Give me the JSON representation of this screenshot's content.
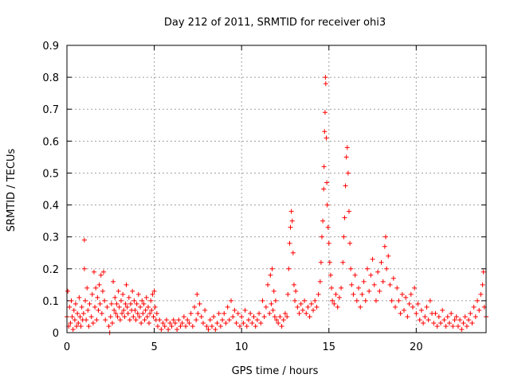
{
  "chart_data": {
    "type": "scatter",
    "title": "Day 212 of 2011, SRMTID for receiver ohi3",
    "xlabel": "GPS time / hours",
    "ylabel": "SRMTID / TECUs",
    "xlim": [
      0,
      24
    ],
    "ylim": [
      0,
      0.9
    ],
    "xticks": [
      0,
      5,
      10,
      15,
      20
    ],
    "yticks": [
      0,
      0.1,
      0.2,
      0.3,
      0.4,
      0.5,
      0.6,
      0.7,
      0.8,
      0.9
    ],
    "grid": true,
    "marker": "+",
    "color": "#ff0000",
    "series": [
      {
        "name": "SRMTID",
        "points": [
          [
            0.0,
            0.05
          ],
          [
            0.05,
            0.13
          ],
          [
            0.1,
            0.02
          ],
          [
            0.15,
            0.08
          ],
          [
            0.2,
            0.03
          ],
          [
            0.25,
            0.1
          ],
          [
            0.3,
            0.05
          ],
          [
            0.35,
            0.01
          ],
          [
            0.4,
            0.07
          ],
          [
            0.45,
            0.04
          ],
          [
            0.5,
            0.09
          ],
          [
            0.55,
            0.02
          ],
          [
            0.6,
            0.06
          ],
          [
            0.65,
            0.03
          ],
          [
            0.7,
            0.11
          ],
          [
            0.75,
            0.05
          ],
          [
            0.8,
            0.02
          ],
          [
            0.85,
            0.08
          ],
          [
            0.9,
            0.04
          ],
          [
            0.95,
            0.06
          ],
          [
            1.0,
            0.29
          ],
          [
            1.0,
            0.2
          ],
          [
            1.05,
            0.1
          ],
          [
            1.1,
            0.04
          ],
          [
            1.15,
            0.14
          ],
          [
            1.2,
            0.07
          ],
          [
            1.25,
            0.02
          ],
          [
            1.3,
            0.09
          ],
          [
            1.4,
            0.05
          ],
          [
            1.45,
            0.12
          ],
          [
            1.5,
            0.03
          ],
          [
            1.55,
            0.19
          ],
          [
            1.6,
            0.08
          ],
          [
            1.65,
            0.14
          ],
          [
            1.7,
            0.04
          ],
          [
            1.75,
            0.11
          ],
          [
            1.8,
            0.07
          ],
          [
            1.85,
            0.15
          ],
          [
            1.9,
            0.09
          ],
          [
            1.95,
            0.18
          ],
          [
            2.0,
            0.06
          ],
          [
            2.05,
            0.13
          ],
          [
            2.1,
            0.19
          ],
          [
            2.15,
            0.1
          ],
          [
            2.2,
            0.04
          ],
          [
            2.3,
            0.08
          ],
          [
            2.4,
            0.02
          ],
          [
            2.45,
            0.0
          ],
          [
            2.5,
            0.05
          ],
          [
            2.55,
            0.09
          ],
          [
            2.6,
            0.03
          ],
          [
            2.65,
            0.16
          ],
          [
            2.7,
            0.07
          ],
          [
            2.75,
            0.11
          ],
          [
            2.8,
            0.06
          ],
          [
            2.85,
            0.09
          ],
          [
            2.9,
            0.05
          ],
          [
            2.95,
            0.13
          ],
          [
            3.0,
            0.08
          ],
          [
            3.05,
            0.04
          ],
          [
            3.1,
            0.1
          ],
          [
            3.15,
            0.06
          ],
          [
            3.2,
            0.12
          ],
          [
            3.25,
            0.07
          ],
          [
            3.3,
            0.05
          ],
          [
            3.35,
            0.09
          ],
          [
            3.4,
            0.15
          ],
          [
            3.45,
            0.08
          ],
          [
            3.5,
            0.06
          ],
          [
            3.55,
            0.11
          ],
          [
            3.6,
            0.04
          ],
          [
            3.65,
            0.09
          ],
          [
            3.7,
            0.07
          ],
          [
            3.75,
            0.13
          ],
          [
            3.8,
            0.05
          ],
          [
            3.85,
            0.1
          ],
          [
            3.9,
            0.07
          ],
          [
            3.95,
            0.04
          ],
          [
            4.0,
            0.09
          ],
          [
            4.05,
            0.06
          ],
          [
            4.1,
            0.12
          ],
          [
            4.15,
            0.05
          ],
          [
            4.2,
            0.08
          ],
          [
            4.25,
            0.03
          ],
          [
            4.3,
            0.1
          ],
          [
            4.35,
            0.06
          ],
          [
            4.4,
            0.09
          ],
          [
            4.45,
            0.04
          ],
          [
            4.5,
            0.07
          ],
          [
            4.55,
            0.11
          ],
          [
            4.6,
            0.05
          ],
          [
            4.65,
            0.08
          ],
          [
            4.7,
            0.03
          ],
          [
            4.75,
            0.06
          ],
          [
            4.8,
            0.1
          ],
          [
            4.85,
            0.07
          ],
          [
            4.9,
            0.12
          ],
          [
            4.95,
            0.05
          ],
          [
            5.0,
            0.13
          ],
          [
            5.05,
            0.08
          ],
          [
            5.1,
            0.04
          ],
          [
            5.15,
            0.06
          ],
          [
            5.2,
            0.02
          ],
          [
            5.3,
            0.04
          ],
          [
            5.4,
            0.01
          ],
          [
            5.5,
            0.03
          ],
          [
            5.6,
            0.02
          ],
          [
            5.7,
            0.04
          ],
          [
            5.8,
            0.01
          ],
          [
            5.9,
            0.03
          ],
          [
            6.0,
            0.02
          ],
          [
            6.1,
            0.04
          ],
          [
            6.2,
            0.03
          ],
          [
            6.3,
            0.01
          ],
          [
            6.4,
            0.04
          ],
          [
            6.5,
            0.02
          ],
          [
            6.6,
            0.03
          ],
          [
            6.7,
            0.05
          ],
          [
            6.8,
            0.02
          ],
          [
            6.9,
            0.04
          ],
          [
            7.0,
            0.03
          ],
          [
            7.1,
            0.06
          ],
          [
            7.2,
            0.02
          ],
          [
            7.3,
            0.08
          ],
          [
            7.4,
            0.04
          ],
          [
            7.45,
            0.12
          ],
          [
            7.5,
            0.06
          ],
          [
            7.6,
            0.09
          ],
          [
            7.7,
            0.05
          ],
          [
            7.8,
            0.03
          ],
          [
            7.9,
            0.07
          ],
          [
            8.0,
            0.02
          ],
          [
            8.1,
            0.01
          ],
          [
            8.2,
            0.04
          ],
          [
            8.3,
            0.02
          ],
          [
            8.4,
            0.05
          ],
          [
            8.5,
            0.01
          ],
          [
            8.6,
            0.03
          ],
          [
            8.7,
            0.06
          ],
          [
            8.8,
            0.02
          ],
          [
            8.9,
            0.04
          ],
          [
            9.0,
            0.06
          ],
          [
            9.1,
            0.03
          ],
          [
            9.2,
            0.08
          ],
          [
            9.3,
            0.04
          ],
          [
            9.4,
            0.1
          ],
          [
            9.5,
            0.05
          ],
          [
            9.6,
            0.07
          ],
          [
            9.7,
            0.03
          ],
          [
            9.8,
            0.06
          ],
          [
            9.9,
            0.02
          ],
          [
            10.0,
            0.05
          ],
          [
            10.1,
            0.03
          ],
          [
            10.2,
            0.07
          ],
          [
            10.3,
            0.02
          ],
          [
            10.4,
            0.04
          ],
          [
            10.5,
            0.06
          ],
          [
            10.6,
            0.03
          ],
          [
            10.7,
            0.05
          ],
          [
            10.8,
            0.02
          ],
          [
            10.9,
            0.04
          ],
          [
            11.0,
            0.06
          ],
          [
            11.1,
            0.03
          ],
          [
            11.2,
            0.1
          ],
          [
            11.3,
            0.05
          ],
          [
            11.4,
            0.08
          ],
          [
            11.5,
            0.15
          ],
          [
            11.6,
            0.06
          ],
          [
            11.65,
            0.18
          ],
          [
            11.7,
            0.09
          ],
          [
            11.75,
            0.2
          ],
          [
            11.8,
            0.07
          ],
          [
            11.85,
            0.13
          ],
          [
            11.9,
            0.05
          ],
          [
            11.95,
            0.1
          ],
          [
            12.0,
            0.04
          ],
          [
            12.1,
            0.03
          ],
          [
            12.2,
            0.05
          ],
          [
            12.3,
            0.02
          ],
          [
            12.4,
            0.04
          ],
          [
            12.5,
            0.06
          ],
          [
            12.6,
            0.05
          ],
          [
            12.65,
            0.12
          ],
          [
            12.7,
            0.2
          ],
          [
            12.75,
            0.28
          ],
          [
            12.8,
            0.33
          ],
          [
            12.85,
            0.38
          ],
          [
            12.9,
            0.35
          ],
          [
            12.95,
            0.25
          ],
          [
            13.0,
            0.15
          ],
          [
            13.05,
            0.1
          ],
          [
            13.1,
            0.13
          ],
          [
            13.2,
            0.08
          ],
          [
            13.3,
            0.06
          ],
          [
            13.4,
            0.09
          ],
          [
            13.5,
            0.07
          ],
          [
            13.6,
            0.1
          ],
          [
            13.7,
            0.06
          ],
          [
            13.8,
            0.08
          ],
          [
            13.9,
            0.05
          ],
          [
            14.0,
            0.09
          ],
          [
            14.1,
            0.07
          ],
          [
            14.2,
            0.1
          ],
          [
            14.3,
            0.08
          ],
          [
            14.4,
            0.12
          ],
          [
            14.5,
            0.16
          ],
          [
            14.55,
            0.22
          ],
          [
            14.6,
            0.3
          ],
          [
            14.65,
            0.35
          ],
          [
            14.7,
            0.45
          ],
          [
            14.72,
            0.52
          ],
          [
            14.75,
            0.63
          ],
          [
            14.78,
            0.69
          ],
          [
            14.8,
            0.8
          ],
          [
            14.82,
            0.78
          ],
          [
            14.85,
            0.61
          ],
          [
            14.88,
            0.47
          ],
          [
            14.9,
            0.4
          ],
          [
            14.95,
            0.33
          ],
          [
            15.0,
            0.28
          ],
          [
            15.05,
            0.22
          ],
          [
            15.1,
            0.18
          ],
          [
            15.15,
            0.14
          ],
          [
            15.2,
            0.1
          ],
          [
            15.3,
            0.09
          ],
          [
            15.4,
            0.12
          ],
          [
            15.5,
            0.08
          ],
          [
            15.6,
            0.11
          ],
          [
            15.7,
            0.14
          ],
          [
            15.8,
            0.22
          ],
          [
            15.85,
            0.3
          ],
          [
            15.9,
            0.36
          ],
          [
            15.95,
            0.46
          ],
          [
            16.0,
            0.55
          ],
          [
            16.05,
            0.58
          ],
          [
            16.1,
            0.5
          ],
          [
            16.15,
            0.38
          ],
          [
            16.2,
            0.28
          ],
          [
            16.25,
            0.2
          ],
          [
            16.3,
            0.15
          ],
          [
            16.4,
            0.12
          ],
          [
            16.5,
            0.18
          ],
          [
            16.6,
            0.1
          ],
          [
            16.7,
            0.14
          ],
          [
            16.8,
            0.08
          ],
          [
            16.9,
            0.12
          ],
          [
            17.0,
            0.16
          ],
          [
            17.1,
            0.1
          ],
          [
            17.2,
            0.2
          ],
          [
            17.3,
            0.13
          ],
          [
            17.4,
            0.18
          ],
          [
            17.5,
            0.23
          ],
          [
            17.6,
            0.15
          ],
          [
            17.7,
            0.1
          ],
          [
            17.8,
            0.19
          ],
          [
            17.9,
            0.13
          ],
          [
            18.0,
            0.22
          ],
          [
            18.1,
            0.16
          ],
          [
            18.2,
            0.27
          ],
          [
            18.25,
            0.3
          ],
          [
            18.3,
            0.2
          ],
          [
            18.4,
            0.24
          ],
          [
            18.5,
            0.15
          ],
          [
            18.6,
            0.1
          ],
          [
            18.7,
            0.17
          ],
          [
            18.8,
            0.08
          ],
          [
            18.9,
            0.14
          ],
          [
            19.0,
            0.1
          ],
          [
            19.1,
            0.06
          ],
          [
            19.2,
            0.12
          ],
          [
            19.3,
            0.07
          ],
          [
            19.4,
            0.11
          ],
          [
            19.5,
            0.05
          ],
          [
            19.6,
            0.09
          ],
          [
            19.7,
            0.12
          ],
          [
            19.8,
            0.08
          ],
          [
            19.9,
            0.14
          ],
          [
            20.0,
            0.06
          ],
          [
            20.1,
            0.09
          ],
          [
            20.2,
            0.04
          ],
          [
            20.3,
            0.07
          ],
          [
            20.4,
            0.03
          ],
          [
            20.5,
            0.05
          ],
          [
            20.6,
            0.08
          ],
          [
            20.7,
            0.04
          ],
          [
            20.8,
            0.1
          ],
          [
            20.9,
            0.06
          ],
          [
            21.0,
            0.03
          ],
          [
            21.1,
            0.06
          ],
          [
            21.2,
            0.02
          ],
          [
            21.3,
            0.05
          ],
          [
            21.4,
            0.03
          ],
          [
            21.5,
            0.07
          ],
          [
            21.6,
            0.04
          ],
          [
            21.7,
            0.02
          ],
          [
            21.8,
            0.05
          ],
          [
            21.9,
            0.03
          ],
          [
            22.0,
            0.06
          ],
          [
            22.1,
            0.02
          ],
          [
            22.2,
            0.04
          ],
          [
            22.3,
            0.05
          ],
          [
            22.4,
            0.02
          ],
          [
            22.5,
            0.04
          ],
          [
            22.6,
            0.01
          ],
          [
            22.7,
            0.03
          ],
          [
            22.8,
            0.05
          ],
          [
            22.9,
            0.02
          ],
          [
            23.0,
            0.04
          ],
          [
            23.1,
            0.06
          ],
          [
            23.2,
            0.03
          ],
          [
            23.3,
            0.08
          ],
          [
            23.4,
            0.05
          ],
          [
            23.5,
            0.1
          ],
          [
            23.6,
            0.07
          ],
          [
            23.7,
            0.12
          ],
          [
            23.8,
            0.15
          ],
          [
            23.85,
            0.19
          ],
          [
            23.9,
            0.08
          ],
          [
            24.0,
            0.05
          ]
        ]
      }
    ]
  }
}
